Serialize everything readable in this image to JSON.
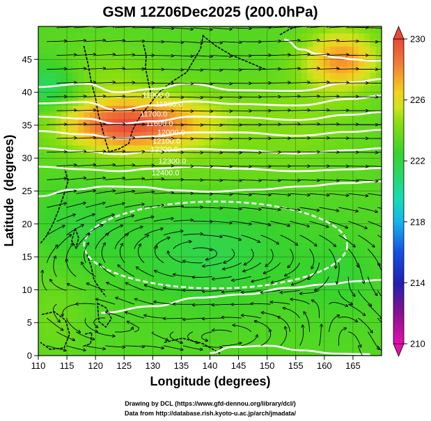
{
  "chart_data": {
    "type": "heatmap",
    "title": "GSM 12Z06Dec2025 (200.0hPa)",
    "xlabel": "Longitude (degrees)",
    "ylabel": "Latitude  (degrees)",
    "xlim": [
      110,
      170
    ],
    "ylim": [
      0,
      50
    ],
    "xticks": [
      110,
      115,
      120,
      125,
      130,
      135,
      140,
      145,
      150,
      155,
      160,
      165
    ],
    "yticks": [
      0,
      5,
      10,
      15,
      20,
      25,
      30,
      35,
      40,
      45
    ],
    "colorbar": {
      "ticks": [
        210,
        214,
        218,
        222,
        226,
        230
      ],
      "range": [
        210,
        230
      ],
      "colors": [
        [
          210,
          "#e40fb0"
        ],
        [
          212,
          "#8a1090"
        ],
        [
          214,
          "#2020b0"
        ],
        [
          216,
          "#1450e0"
        ],
        [
          218,
          "#14b4ee"
        ],
        [
          219.5,
          "#16dcb4"
        ],
        [
          221,
          "#28d86a"
        ],
        [
          222.5,
          "#38d32c"
        ],
        [
          224.5,
          "#88de10"
        ],
        [
          225.5,
          "#cee41c"
        ],
        [
          226.5,
          "#f0d21e"
        ],
        [
          227.5,
          "#f5a42a"
        ],
        [
          228.5,
          "#f07838"
        ],
        [
          230,
          "#e84838"
        ]
      ]
    },
    "contour_labels": [
      "11900.0",
      "11800.0",
      "11700.0",
      "11600.0",
      "12000.0",
      "12100.0",
      "12200.0",
      "12300.0",
      "12400.0"
    ],
    "temperature_field": {
      "base": 223.2,
      "blobs": [
        {
          "lon": 124,
          "lat": 35,
          "value": 5.8,
          "rlon": 10,
          "rlat": 3.8
        },
        {
          "lon": 135,
          "lat": 35.5,
          "value": 2.6,
          "rlon": 9,
          "rlat": 4.5
        },
        {
          "lon": 163,
          "lat": 45,
          "value": 4.6,
          "rlon": 6.5,
          "rlat": 4.5
        },
        {
          "lon": 155,
          "lat": 36,
          "value": 1.2,
          "rlon": 12,
          "rlat": 6
        },
        {
          "lon": 122,
          "lat": 42,
          "value": 1.2,
          "rlon": 9,
          "rlat": 5
        },
        {
          "lon": 112,
          "lat": 41,
          "value": -2.2,
          "rlon": 5,
          "rlat": 3.5
        },
        {
          "lon": 140,
          "lat": 16,
          "value": -1.4,
          "rlon": 15,
          "rlat": 8
        },
        {
          "lon": 117,
          "lat": 20,
          "value": -1.0,
          "rlon": 8,
          "rlat": 6
        },
        {
          "lon": 163,
          "lat": 12,
          "value": -0.8,
          "rlon": 7,
          "rlat": 6
        },
        {
          "lon": 140,
          "lat": 28,
          "value": 0.6,
          "rlon": 20,
          "rlat": 4
        },
        {
          "lon": 113,
          "lat": 6,
          "value": 0.7,
          "rlon": 5,
          "rlat": 7
        }
      ]
    },
    "height_contours": [
      {
        "name": "contour-40N",
        "points": [
          [
            110,
            40.8
          ],
          [
            118,
            41.3
          ],
          [
            124,
            40
          ],
          [
            130,
            40.5
          ],
          [
            136,
            41.3
          ],
          [
            145,
            40.3
          ],
          [
            155,
            40.2
          ],
          [
            165,
            41.5
          ],
          [
            170,
            42
          ]
        ]
      },
      {
        "name": "contour-38N",
        "points": [
          [
            110,
            38.3
          ],
          [
            118,
            38.5
          ],
          [
            124,
            37.3
          ],
          [
            130,
            38
          ],
          [
            137,
            38.6
          ],
          [
            145,
            38.2
          ],
          [
            155,
            38
          ],
          [
            165,
            39
          ],
          [
            170,
            39.5
          ]
        ]
      },
      {
        "name": "contour-36N",
        "points": [
          [
            110,
            36.3
          ],
          [
            118,
            36
          ],
          [
            124,
            35.2
          ],
          [
            130,
            35.6
          ],
          [
            137,
            36.3
          ],
          [
            145,
            36.2
          ],
          [
            155,
            35.8
          ],
          [
            165,
            36.6
          ],
          [
            170,
            37
          ]
        ]
      },
      {
        "name": "contour-34N",
        "points": [
          [
            110,
            34.1
          ],
          [
            118,
            33.6
          ],
          [
            124,
            33
          ],
          [
            130,
            33.3
          ],
          [
            137,
            33.9
          ],
          [
            145,
            33.9
          ],
          [
            155,
            33.4
          ],
          [
            165,
            34
          ],
          [
            170,
            34.3
          ]
        ]
      },
      {
        "name": "contour-32N",
        "points": [
          [
            110,
            31.5
          ],
          [
            118,
            31
          ],
          [
            124,
            30.6
          ],
          [
            130,
            31
          ],
          [
            137,
            31.4
          ],
          [
            145,
            31.2
          ],
          [
            155,
            30.7
          ],
          [
            165,
            31.2
          ],
          [
            170,
            31.5
          ]
        ]
      },
      {
        "name": "contour-29N",
        "points": [
          [
            110,
            28.7
          ],
          [
            118,
            28.3
          ],
          [
            124,
            28
          ],
          [
            130,
            28.4
          ],
          [
            137,
            28.7
          ],
          [
            145,
            28.4
          ],
          [
            155,
            28
          ],
          [
            165,
            28.3
          ],
          [
            170,
            28.5
          ]
        ]
      },
      {
        "name": "contour-25N",
        "points": [
          [
            110,
            24.2
          ],
          [
            116,
            25.2
          ],
          [
            122,
            25.7
          ],
          [
            128,
            25.6
          ],
          [
            134,
            25.1
          ],
          [
            140,
            24.9
          ],
          [
            148,
            25.2
          ],
          [
            156,
            25.7
          ],
          [
            164,
            26.2
          ],
          [
            170,
            26.5
          ]
        ]
      },
      {
        "name": "contour-south",
        "points": [
          [
            121,
            6.5
          ],
          [
            130,
            7.5
          ],
          [
            138,
            8.8
          ],
          [
            146,
            9.3
          ],
          [
            154,
            10.3
          ],
          [
            160,
            10.8
          ],
          [
            166,
            11.3
          ],
          [
            170,
            11.5
          ]
        ]
      },
      {
        "name": "contour-high",
        "points": [
          [
            153,
            48
          ],
          [
            156,
            46.5
          ],
          [
            159,
            45.8
          ],
          [
            162,
            45.3
          ],
          [
            165,
            45
          ],
          [
            168,
            44.8
          ],
          [
            170,
            44.8
          ]
        ]
      },
      {
        "name": "contour-equator",
        "points": [
          [
            140,
            0.4
          ],
          [
            144,
            1.3
          ],
          [
            150,
            1.5
          ],
          [
            156,
            0.8
          ],
          [
            162,
            0.3
          ],
          [
            168,
            0.2
          ]
        ]
      }
    ],
    "anticyclone_contour": {
      "lon": 141,
      "lat": 16.8,
      "rlon": 23,
      "rlat": 6.6
    },
    "circulations": [
      {
        "name": "anticyclone-center",
        "lon": 140,
        "lat": 17,
        "rlon": 20,
        "rlat": 7,
        "sense": -1
      },
      {
        "name": "southern-eddy",
        "lon": 140,
        "lat": 3,
        "rlon": 12,
        "rlat": 4,
        "sense": 1
      },
      {
        "name": "southwest-eddy",
        "lon": 122,
        "lat": 6,
        "rlon": 7,
        "rlat": 5,
        "sense": 1
      },
      {
        "name": "southeast-eddy",
        "lon": 163,
        "lat": 4,
        "rlon": 6,
        "rlat": 4,
        "sense": -1
      }
    ],
    "credits": [
      "Drawing by DCL (https://www.gfd-dennou.org/library/dcl/)",
      "Data from http://database.rish.kyoto-u.ac.jp/arch/jmadata/"
    ]
  }
}
